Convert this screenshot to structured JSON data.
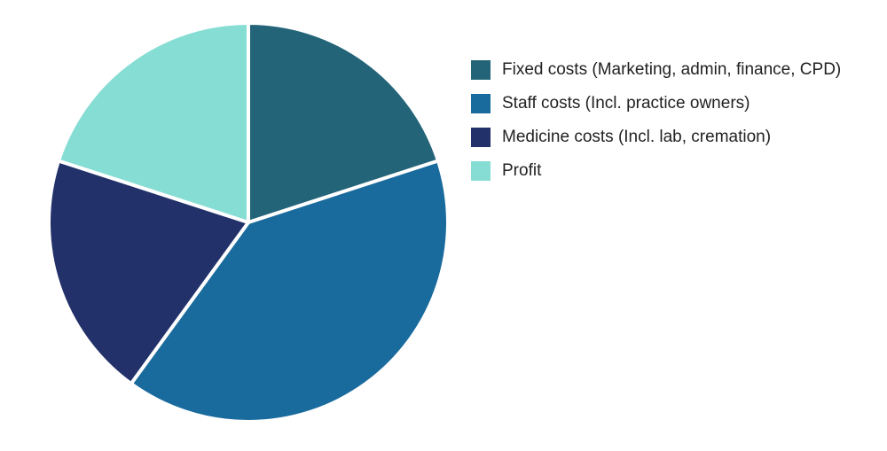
{
  "chart_data": {
    "type": "pie",
    "title": "",
    "slices": [
      {
        "label": "Fixed costs (Marketing, admin, finance, CPD)",
        "value": 20,
        "color": "#246479"
      },
      {
        "label": "Staff costs (Incl. practice owners)",
        "value": 40,
        "color": "#1a6b9d"
      },
      {
        "label": "Medicine costs (Incl. lab, cremation)",
        "value": 20,
        "color": "#223169"
      },
      {
        "label": "Profit",
        "value": 20,
        "color": "#86ddd4"
      }
    ],
    "start_angle_deg": 0,
    "direction": "clockwise",
    "slice_border_color": "#ffffff",
    "legend_position": "right"
  }
}
